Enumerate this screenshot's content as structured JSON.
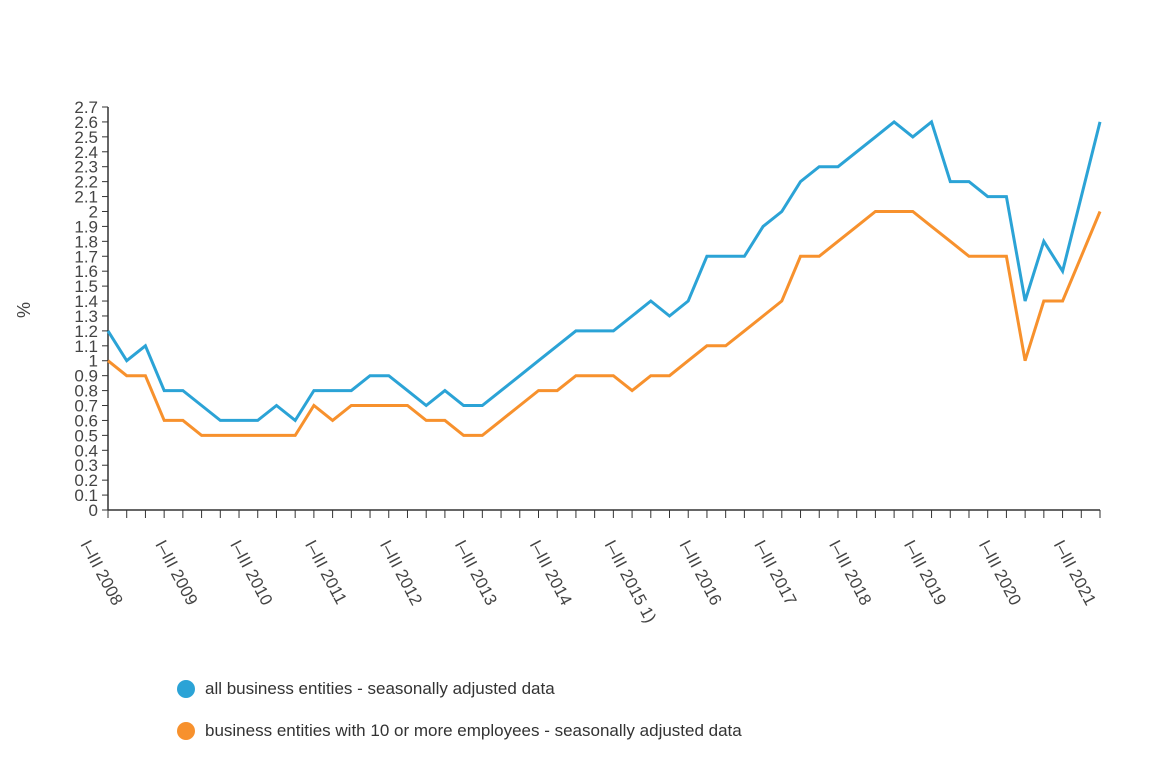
{
  "chart_data": {
    "type": "line",
    "ylabel": "%",
    "ylim": [
      0,
      2.7
    ],
    "yticks": [
      "0",
      "0.1",
      "0.2",
      "0.3",
      "0.4",
      "0.5",
      "0.6",
      "0.7",
      "0.8",
      "0.9",
      "1",
      "1.1",
      "1.2",
      "1.3",
      "1.4",
      "1.5",
      "1.6",
      "1.7",
      "1.8",
      "1.9",
      "2",
      "2.1",
      "2.2",
      "2.3",
      "2.4",
      "2.5",
      "2.6",
      "2.7"
    ],
    "quarters_count": 54,
    "xtick_labels": [
      {
        "label": "I–III 2008",
        "index": 0
      },
      {
        "label": "I–III 2009",
        "index": 4
      },
      {
        "label": "I–III 2010",
        "index": 8
      },
      {
        "label": "I–III 2011",
        "index": 12
      },
      {
        "label": "I–III 2012",
        "index": 16
      },
      {
        "label": "I–III 2013",
        "index": 20
      },
      {
        "label": "I–III 2014",
        "index": 24
      },
      {
        "label": "I–III 2015 1)",
        "index": 28
      },
      {
        "label": "I–III 2016",
        "index": 32
      },
      {
        "label": "I–III 2017",
        "index": 36
      },
      {
        "label": "I–III 2018",
        "index": 40
      },
      {
        "label": "I–III 2019",
        "index": 44
      },
      {
        "label": "I–III 2020",
        "index": 48
      },
      {
        "label": "I–III 2021",
        "index": 52
      }
    ],
    "series": [
      {
        "name": "all business entities - seasonally adjusted data",
        "color": "#2ba3d6",
        "values": [
          1.2,
          1.0,
          1.1,
          0.8,
          0.8,
          0.7,
          0.6,
          0.6,
          0.6,
          0.7,
          0.6,
          0.8,
          0.8,
          0.8,
          0.9,
          0.9,
          0.8,
          0.7,
          0.8,
          0.7,
          0.7,
          0.8,
          0.9,
          1.0,
          1.1,
          1.2,
          1.2,
          1.2,
          1.3,
          1.4,
          1.3,
          1.4,
          1.7,
          1.7,
          1.7,
          1.9,
          2.0,
          2.2,
          2.3,
          2.3,
          2.4,
          2.5,
          2.6,
          2.5,
          2.6,
          2.2,
          2.2,
          2.1,
          2.1,
          1.4,
          1.8,
          1.6,
          2.1,
          2.6
        ]
      },
      {
        "name": "business entities with 10 or more employees  - seasonally adjusted data",
        "color": "#f7912d",
        "values": [
          1.0,
          0.9,
          0.9,
          0.6,
          0.6,
          0.5,
          0.5,
          0.5,
          0.5,
          0.5,
          0.5,
          0.7,
          0.6,
          0.7,
          0.7,
          0.7,
          0.7,
          0.6,
          0.6,
          0.5,
          0.5,
          0.6,
          0.7,
          0.8,
          0.8,
          0.9,
          0.9,
          0.9,
          0.8,
          0.9,
          0.9,
          1.0,
          1.1,
          1.1,
          1.2,
          1.3,
          1.4,
          1.7,
          1.7,
          1.8,
          1.9,
          2.0,
          2.0,
          2.0,
          1.9,
          1.8,
          1.7,
          1.7,
          1.7,
          1.0,
          1.4,
          1.4,
          1.7,
          2.0
        ]
      }
    ]
  }
}
